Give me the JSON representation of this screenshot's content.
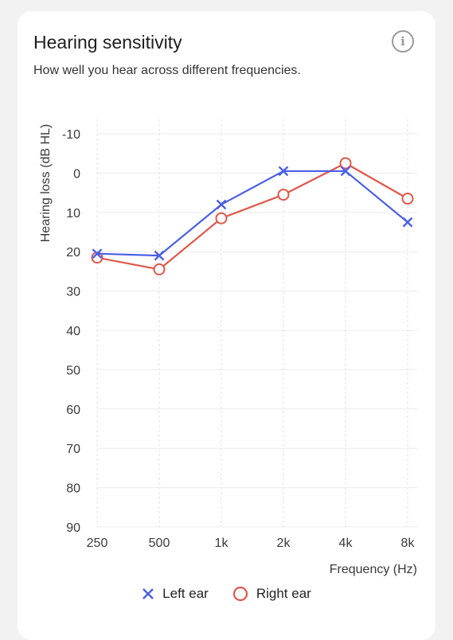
{
  "card": {
    "title": "Hearing sensitivity",
    "subtitle": "How well you hear across different frequencies.",
    "info_icon": "info-icon",
    "info_glyph": "i"
  },
  "legend": {
    "left_label": "Left ear",
    "right_label": "Right ear"
  },
  "chart_data": {
    "type": "line",
    "categories": [
      "250",
      "500",
      "1k",
      "2k",
      "4k",
      "8k"
    ],
    "xlabel": "Frequency (Hz)",
    "ylabel": "Hearing loss (dB HL)",
    "ylim": [
      -10,
      90
    ],
    "y_inverted": true,
    "yticks": [
      -10,
      0,
      10,
      20,
      30,
      40,
      50,
      60,
      70,
      80,
      90
    ],
    "grid": true,
    "legend_position": "bottom-center",
    "series": [
      {
        "name": "Left ear",
        "marker": "x",
        "color": "#4a5fe6",
        "values": [
          20.5,
          21,
          8,
          -0.5,
          -0.5,
          12.5
        ]
      },
      {
        "name": "Right ear",
        "marker": "o",
        "color": "#e0574a",
        "values": [
          21.5,
          24.5,
          11.5,
          5.5,
          -2.5,
          6.5
        ]
      }
    ]
  }
}
